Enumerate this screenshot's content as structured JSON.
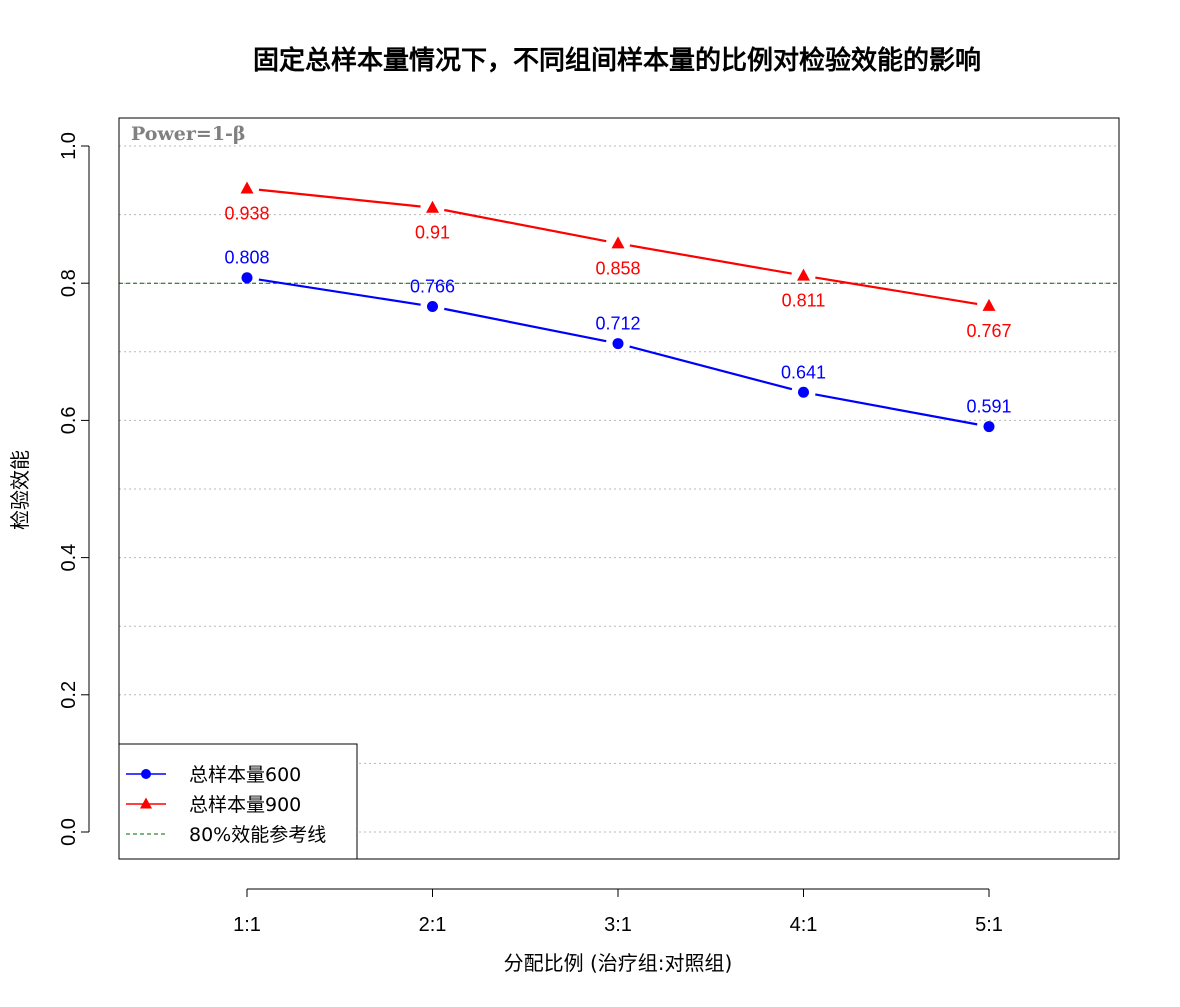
{
  "chart_data": {
    "type": "line",
    "title": "固定总样本量情况下，不同组间样本量的比例对检验效能的影响",
    "xlabel": "分配比例 (治疗组:对照组)",
    "ylabel": "检验效能",
    "categories": [
      "1:1",
      "2:1",
      "3:1",
      "4:1",
      "5:1"
    ],
    "ylim": [
      0,
      1.0
    ],
    "yticks": [
      "0.0",
      "0.2",
      "0.4",
      "0.6",
      "0.8",
      "1.0"
    ],
    "series": [
      {
        "name": "总样本量600",
        "values": [
          0.808,
          0.766,
          0.712,
          0.641,
          0.591
        ],
        "labels": [
          "0.808",
          "0.766",
          "0.712",
          "0.641",
          "0.591"
        ],
        "color": "#0000ff",
        "marker": "circle"
      },
      {
        "name": "总样本量900",
        "values": [
          0.938,
          0.91,
          0.858,
          0.811,
          0.767
        ],
        "labels": [
          "0.938",
          "0.91",
          "0.858",
          "0.811",
          "0.767"
        ],
        "color": "#ff0000",
        "marker": "triangle"
      }
    ],
    "reference_line": {
      "name": "80%效能参考线",
      "value": 0.8,
      "color": "#006400",
      "style": "dashed"
    },
    "annotation": "Power=1-β",
    "grid": "horizontal dotted",
    "legend_position": "bottom-left"
  }
}
